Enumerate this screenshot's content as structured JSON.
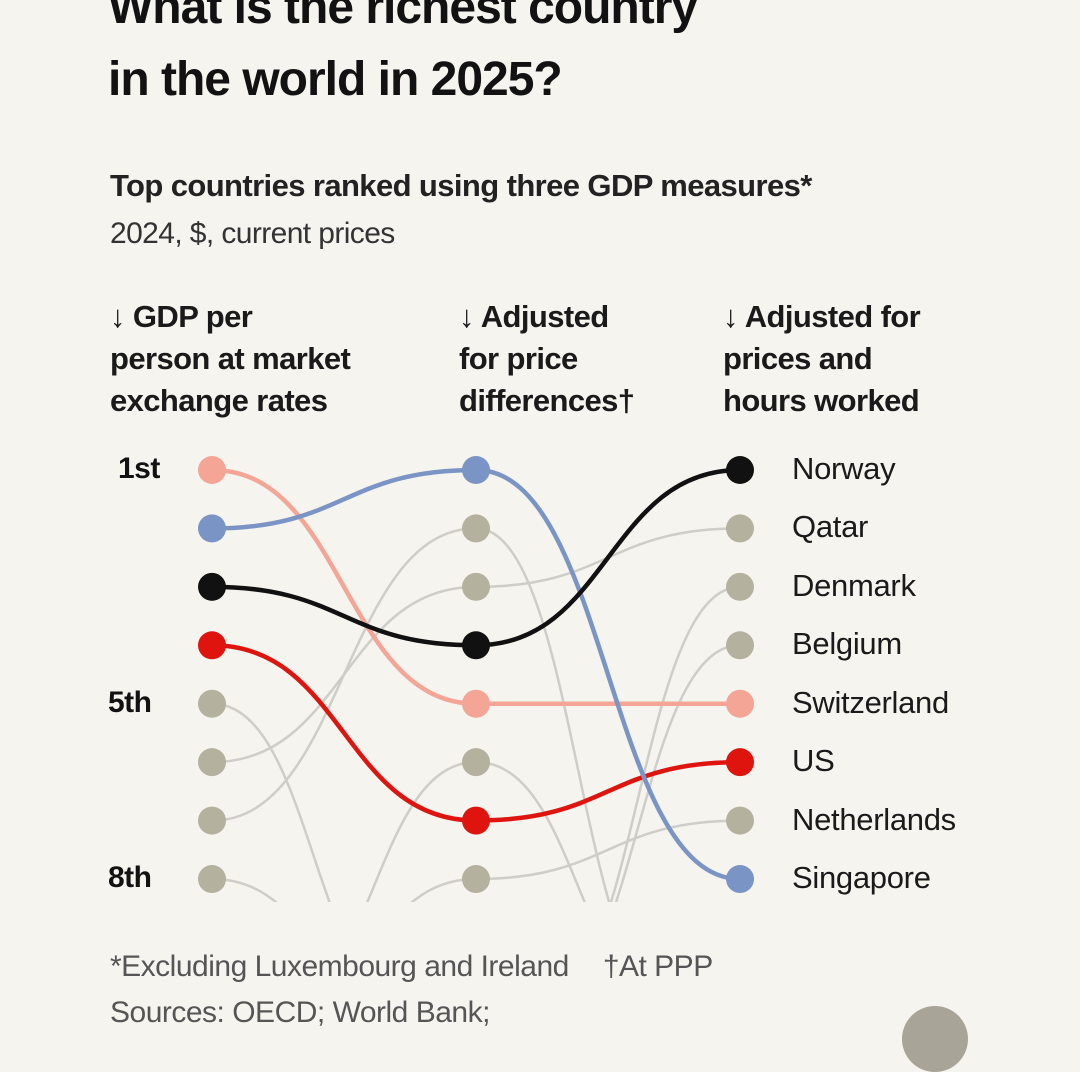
{
  "title_lines": [
    "What is the richest country",
    "in the world in 2025?"
  ],
  "subtitle": "Top countries ranked using three GDP measures*",
  "unit_line": "2024, $, current prices",
  "footnotes": {
    "note1": "*Excluding Luxembourg and Ireland",
    "note2": "†At PPP",
    "sources": "Sources: OECD; World Bank;"
  },
  "chart_data": {
    "type": "bump",
    "columns": [
      "↓ GDP per\nperson at market\nexchange rates",
      "↓ Adjusted\nfor price\ndifferences†",
      "↓ Adjusted for\nprices and\nhours worked"
    ],
    "rank_labels": [
      {
        "rank": 1,
        "label": "1st"
      },
      {
        "rank": 5,
        "label": "5th"
      },
      {
        "rank": 8,
        "label": "8th"
      }
    ],
    "visible_ranks": 8,
    "final_column_labels": [
      "Norway",
      "Qatar",
      "Denmark",
      "Belgium",
      "Switzerland",
      "US",
      "Netherlands",
      "Singapore"
    ],
    "colors": {
      "Switzerland": "#f4a596",
      "Singapore": "#7b94c6",
      "Norway": "#111111",
      "US": "#e0140f",
      "other_dot": "#b5b19f",
      "other_line": "#cfcdc8"
    },
    "series": [
      {
        "name": "Qatar",
        "ranks": [
          6,
          3,
          2
        ],
        "highlight": false
      },
      {
        "name": "",
        "ranks": [
          7,
          2,
          null
        ],
        "highlight": false
      },
      {
        "name": "",
        "ranks": [
          5,
          null,
          null
        ],
        "highlight": false
      },
      {
        "name": "",
        "ranks": [
          8,
          null,
          null
        ],
        "highlight": false
      },
      {
        "name": "Netherlands",
        "ranks": [
          null,
          8,
          7
        ],
        "highlight": false
      },
      {
        "name": "Denmark",
        "ranks": [
          null,
          null,
          3
        ],
        "highlight": false
      },
      {
        "name": "Belgium",
        "ranks": [
          null,
          null,
          4
        ],
        "highlight": false
      },
      {
        "name": "",
        "ranks": [
          null,
          6,
          null
        ],
        "highlight": false
      },
      {
        "name": "Switzerland",
        "ranks": [
          1,
          5,
          5
        ],
        "highlight": true
      },
      {
        "name": "US",
        "ranks": [
          4,
          7,
          6
        ],
        "highlight": true
      },
      {
        "name": "Singapore",
        "ranks": [
          2,
          1,
          8
        ],
        "highlight": true
      },
      {
        "name": "Norway",
        "ranks": [
          3,
          4,
          1
        ],
        "highlight": true
      }
    ]
  }
}
